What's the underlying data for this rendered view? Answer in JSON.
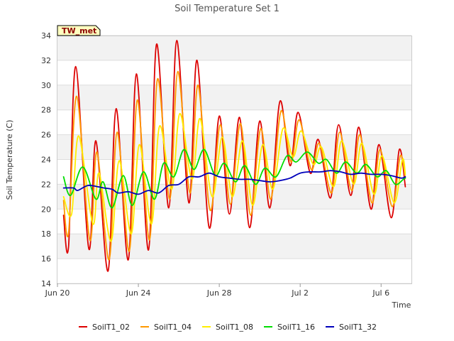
{
  "chart_data": {
    "type": "line",
    "title": "Soil Temperature Set 1",
    "xlabel": "Time",
    "ylabel": "Soil Temperature (C)",
    "badge": "TW_met",
    "ylim": [
      14,
      34
    ],
    "yticks": [
      14,
      16,
      18,
      20,
      22,
      24,
      26,
      28,
      30,
      32,
      34
    ],
    "xlim": [
      0,
      17.5
    ],
    "xticks": [
      {
        "value": 0,
        "label": "Jun 20"
      },
      {
        "value": 4,
        "label": "Jun 24"
      },
      {
        "value": 8,
        "label": "Jun 28"
      },
      {
        "value": 12,
        "label": "Jul 2"
      },
      {
        "value": 16,
        "label": "Jul 6"
      }
    ],
    "grid": true,
    "legend_position": "bottom",
    "colors": {
      "SoilT1_02": "#dd0000",
      "SoilT1_04": "#ff9900",
      "SoilT1_08": "#ffee00",
      "SoilT1_16": "#00dd00",
      "SoilT1_32": "#0000bb"
    },
    "series": [
      {
        "name": "SoilT1_02",
        "color": "#dd0000",
        "points": [
          [
            0.3,
            19.5
          ],
          [
            0.55,
            17.0
          ],
          [
            0.9,
            31.5
          ],
          [
            1.55,
            16.8
          ],
          [
            1.9,
            25.5
          ],
          [
            2.5,
            15.0
          ],
          [
            2.9,
            28.1
          ],
          [
            3.5,
            15.9
          ],
          [
            3.9,
            30.9
          ],
          [
            4.5,
            16.7
          ],
          [
            4.9,
            33.3
          ],
          [
            5.5,
            20.1
          ],
          [
            5.9,
            33.6
          ],
          [
            6.5,
            20.5
          ],
          [
            6.9,
            32.0
          ],
          [
            7.5,
            18.5
          ],
          [
            8.0,
            27.5
          ],
          [
            8.5,
            19.6
          ],
          [
            9.0,
            27.4
          ],
          [
            9.5,
            18.5
          ],
          [
            10.0,
            27.1
          ],
          [
            10.5,
            20.1
          ],
          [
            11.0,
            28.7
          ],
          [
            11.5,
            23.5
          ],
          [
            11.9,
            27.8
          ],
          [
            12.5,
            22.9
          ],
          [
            12.9,
            25.6
          ],
          [
            13.5,
            20.9
          ],
          [
            13.9,
            26.8
          ],
          [
            14.5,
            21.1
          ],
          [
            14.9,
            26.6
          ],
          [
            15.5,
            20.0
          ],
          [
            15.9,
            25.2
          ],
          [
            16.5,
            19.3
          ],
          [
            16.9,
            24.8
          ],
          [
            17.2,
            21.8
          ]
        ]
      },
      {
        "name": "SoilT1_04",
        "color": "#ff9900",
        "points": [
          [
            0.3,
            20.7
          ],
          [
            0.55,
            18.1
          ],
          [
            0.95,
            29.1
          ],
          [
            1.6,
            17.5
          ],
          [
            1.95,
            24.6
          ],
          [
            2.55,
            15.9
          ],
          [
            2.95,
            26.2
          ],
          [
            3.55,
            16.6
          ],
          [
            3.95,
            28.8
          ],
          [
            4.55,
            17.5
          ],
          [
            4.95,
            30.5
          ],
          [
            5.55,
            20.8
          ],
          [
            5.95,
            31.1
          ],
          [
            6.55,
            21.3
          ],
          [
            6.95,
            30.0
          ],
          [
            7.55,
            19.9
          ],
          [
            8.05,
            26.8
          ],
          [
            8.55,
            20.4
          ],
          [
            9.05,
            26.9
          ],
          [
            9.55,
            19.5
          ],
          [
            10.05,
            26.5
          ],
          [
            10.55,
            20.8
          ],
          [
            11.05,
            27.9
          ],
          [
            11.55,
            23.8
          ],
          [
            11.95,
            27.2
          ],
          [
            12.55,
            23.2
          ],
          [
            12.95,
            25.3
          ],
          [
            13.55,
            21.3
          ],
          [
            13.95,
            26.2
          ],
          [
            14.55,
            21.5
          ],
          [
            14.95,
            26.0
          ],
          [
            15.55,
            20.5
          ],
          [
            15.95,
            24.8
          ],
          [
            16.55,
            20.2
          ],
          [
            16.95,
            24.3
          ],
          [
            17.2,
            22.5
          ]
        ]
      },
      {
        "name": "SoilT1_08",
        "color": "#ffee00",
        "points": [
          [
            0.3,
            21.0
          ],
          [
            0.7,
            19.6
          ],
          [
            1.05,
            25.9
          ],
          [
            1.75,
            18.8
          ],
          [
            2.05,
            22.9
          ],
          [
            2.65,
            17.4
          ],
          [
            3.05,
            23.9
          ],
          [
            3.65,
            18.0
          ],
          [
            4.05,
            25.2
          ],
          [
            4.65,
            18.8
          ],
          [
            5.05,
            26.7
          ],
          [
            5.65,
            21.6
          ],
          [
            6.05,
            27.7
          ],
          [
            6.65,
            22.4
          ],
          [
            7.05,
            27.3
          ],
          [
            7.65,
            21.0
          ],
          [
            8.15,
            25.8
          ],
          [
            8.65,
            21.0
          ],
          [
            9.15,
            25.5
          ],
          [
            9.65,
            20.3
          ],
          [
            10.15,
            25.2
          ],
          [
            10.65,
            21.6
          ],
          [
            11.15,
            26.5
          ],
          [
            11.65,
            24.2
          ],
          [
            12.05,
            26.3
          ],
          [
            12.65,
            23.6
          ],
          [
            13.05,
            25.0
          ],
          [
            13.65,
            21.8
          ],
          [
            14.05,
            25.5
          ],
          [
            14.65,
            22.0
          ],
          [
            15.05,
            25.3
          ],
          [
            15.65,
            21.2
          ],
          [
            16.05,
            24.3
          ],
          [
            16.65,
            20.5
          ],
          [
            17.05,
            24.0
          ],
          [
            17.2,
            22.8
          ]
        ]
      },
      {
        "name": "SoilT1_16",
        "color": "#00dd00",
        "points": [
          [
            0.3,
            22.6
          ],
          [
            0.65,
            21.1
          ],
          [
            1.25,
            23.4
          ],
          [
            1.9,
            20.8
          ],
          [
            2.25,
            22.2
          ],
          [
            2.7,
            20.1
          ],
          [
            3.25,
            22.7
          ],
          [
            3.7,
            20.3
          ],
          [
            4.25,
            23.0
          ],
          [
            4.8,
            20.8
          ],
          [
            5.25,
            23.7
          ],
          [
            5.75,
            22.6
          ],
          [
            6.25,
            24.8
          ],
          [
            6.75,
            23.2
          ],
          [
            7.25,
            24.8
          ],
          [
            7.8,
            22.7
          ],
          [
            8.25,
            23.7
          ],
          [
            8.8,
            22.2
          ],
          [
            9.25,
            23.5
          ],
          [
            9.8,
            22.0
          ],
          [
            10.25,
            23.3
          ],
          [
            10.8,
            22.6
          ],
          [
            11.35,
            24.3
          ],
          [
            11.8,
            23.8
          ],
          [
            12.35,
            24.6
          ],
          [
            12.9,
            23.7
          ],
          [
            13.3,
            24.0
          ],
          [
            13.8,
            22.9
          ],
          [
            14.25,
            23.8
          ],
          [
            14.8,
            22.9
          ],
          [
            15.25,
            23.6
          ],
          [
            15.8,
            22.6
          ],
          [
            16.25,
            23.1
          ],
          [
            16.7,
            22.0
          ],
          [
            17.1,
            22.4
          ],
          [
            17.2,
            22.5
          ]
        ]
      },
      {
        "name": "SoilT1_32",
        "color": "#0000bb",
        "points": [
          [
            0.3,
            21.7
          ],
          [
            0.8,
            21.7
          ],
          [
            1.0,
            21.5
          ],
          [
            1.5,
            21.9
          ],
          [
            2.0,
            21.8
          ],
          [
            2.3,
            21.7
          ],
          [
            2.7,
            21.6
          ],
          [
            3.0,
            21.3
          ],
          [
            3.5,
            21.4
          ],
          [
            4.0,
            21.2
          ],
          [
            4.5,
            21.5
          ],
          [
            5.0,
            21.3
          ],
          [
            5.5,
            21.9
          ],
          [
            6.0,
            22.0
          ],
          [
            6.5,
            22.6
          ],
          [
            7.0,
            22.6
          ],
          [
            7.5,
            22.9
          ],
          [
            8.0,
            22.6
          ],
          [
            8.5,
            22.5
          ],
          [
            9.0,
            22.4
          ],
          [
            9.5,
            22.4
          ],
          [
            10.0,
            22.3
          ],
          [
            10.5,
            22.2
          ],
          [
            11.0,
            22.3
          ],
          [
            11.5,
            22.5
          ],
          [
            12.0,
            22.9
          ],
          [
            12.5,
            23.0
          ],
          [
            13.0,
            23.0
          ],
          [
            13.5,
            23.1
          ],
          [
            14.0,
            23.0
          ],
          [
            14.5,
            22.8
          ],
          [
            15.0,
            22.9
          ],
          [
            15.5,
            22.8
          ],
          [
            16.0,
            22.8
          ],
          [
            16.5,
            22.7
          ],
          [
            17.0,
            22.5
          ],
          [
            17.2,
            22.6
          ]
        ]
      }
    ]
  }
}
